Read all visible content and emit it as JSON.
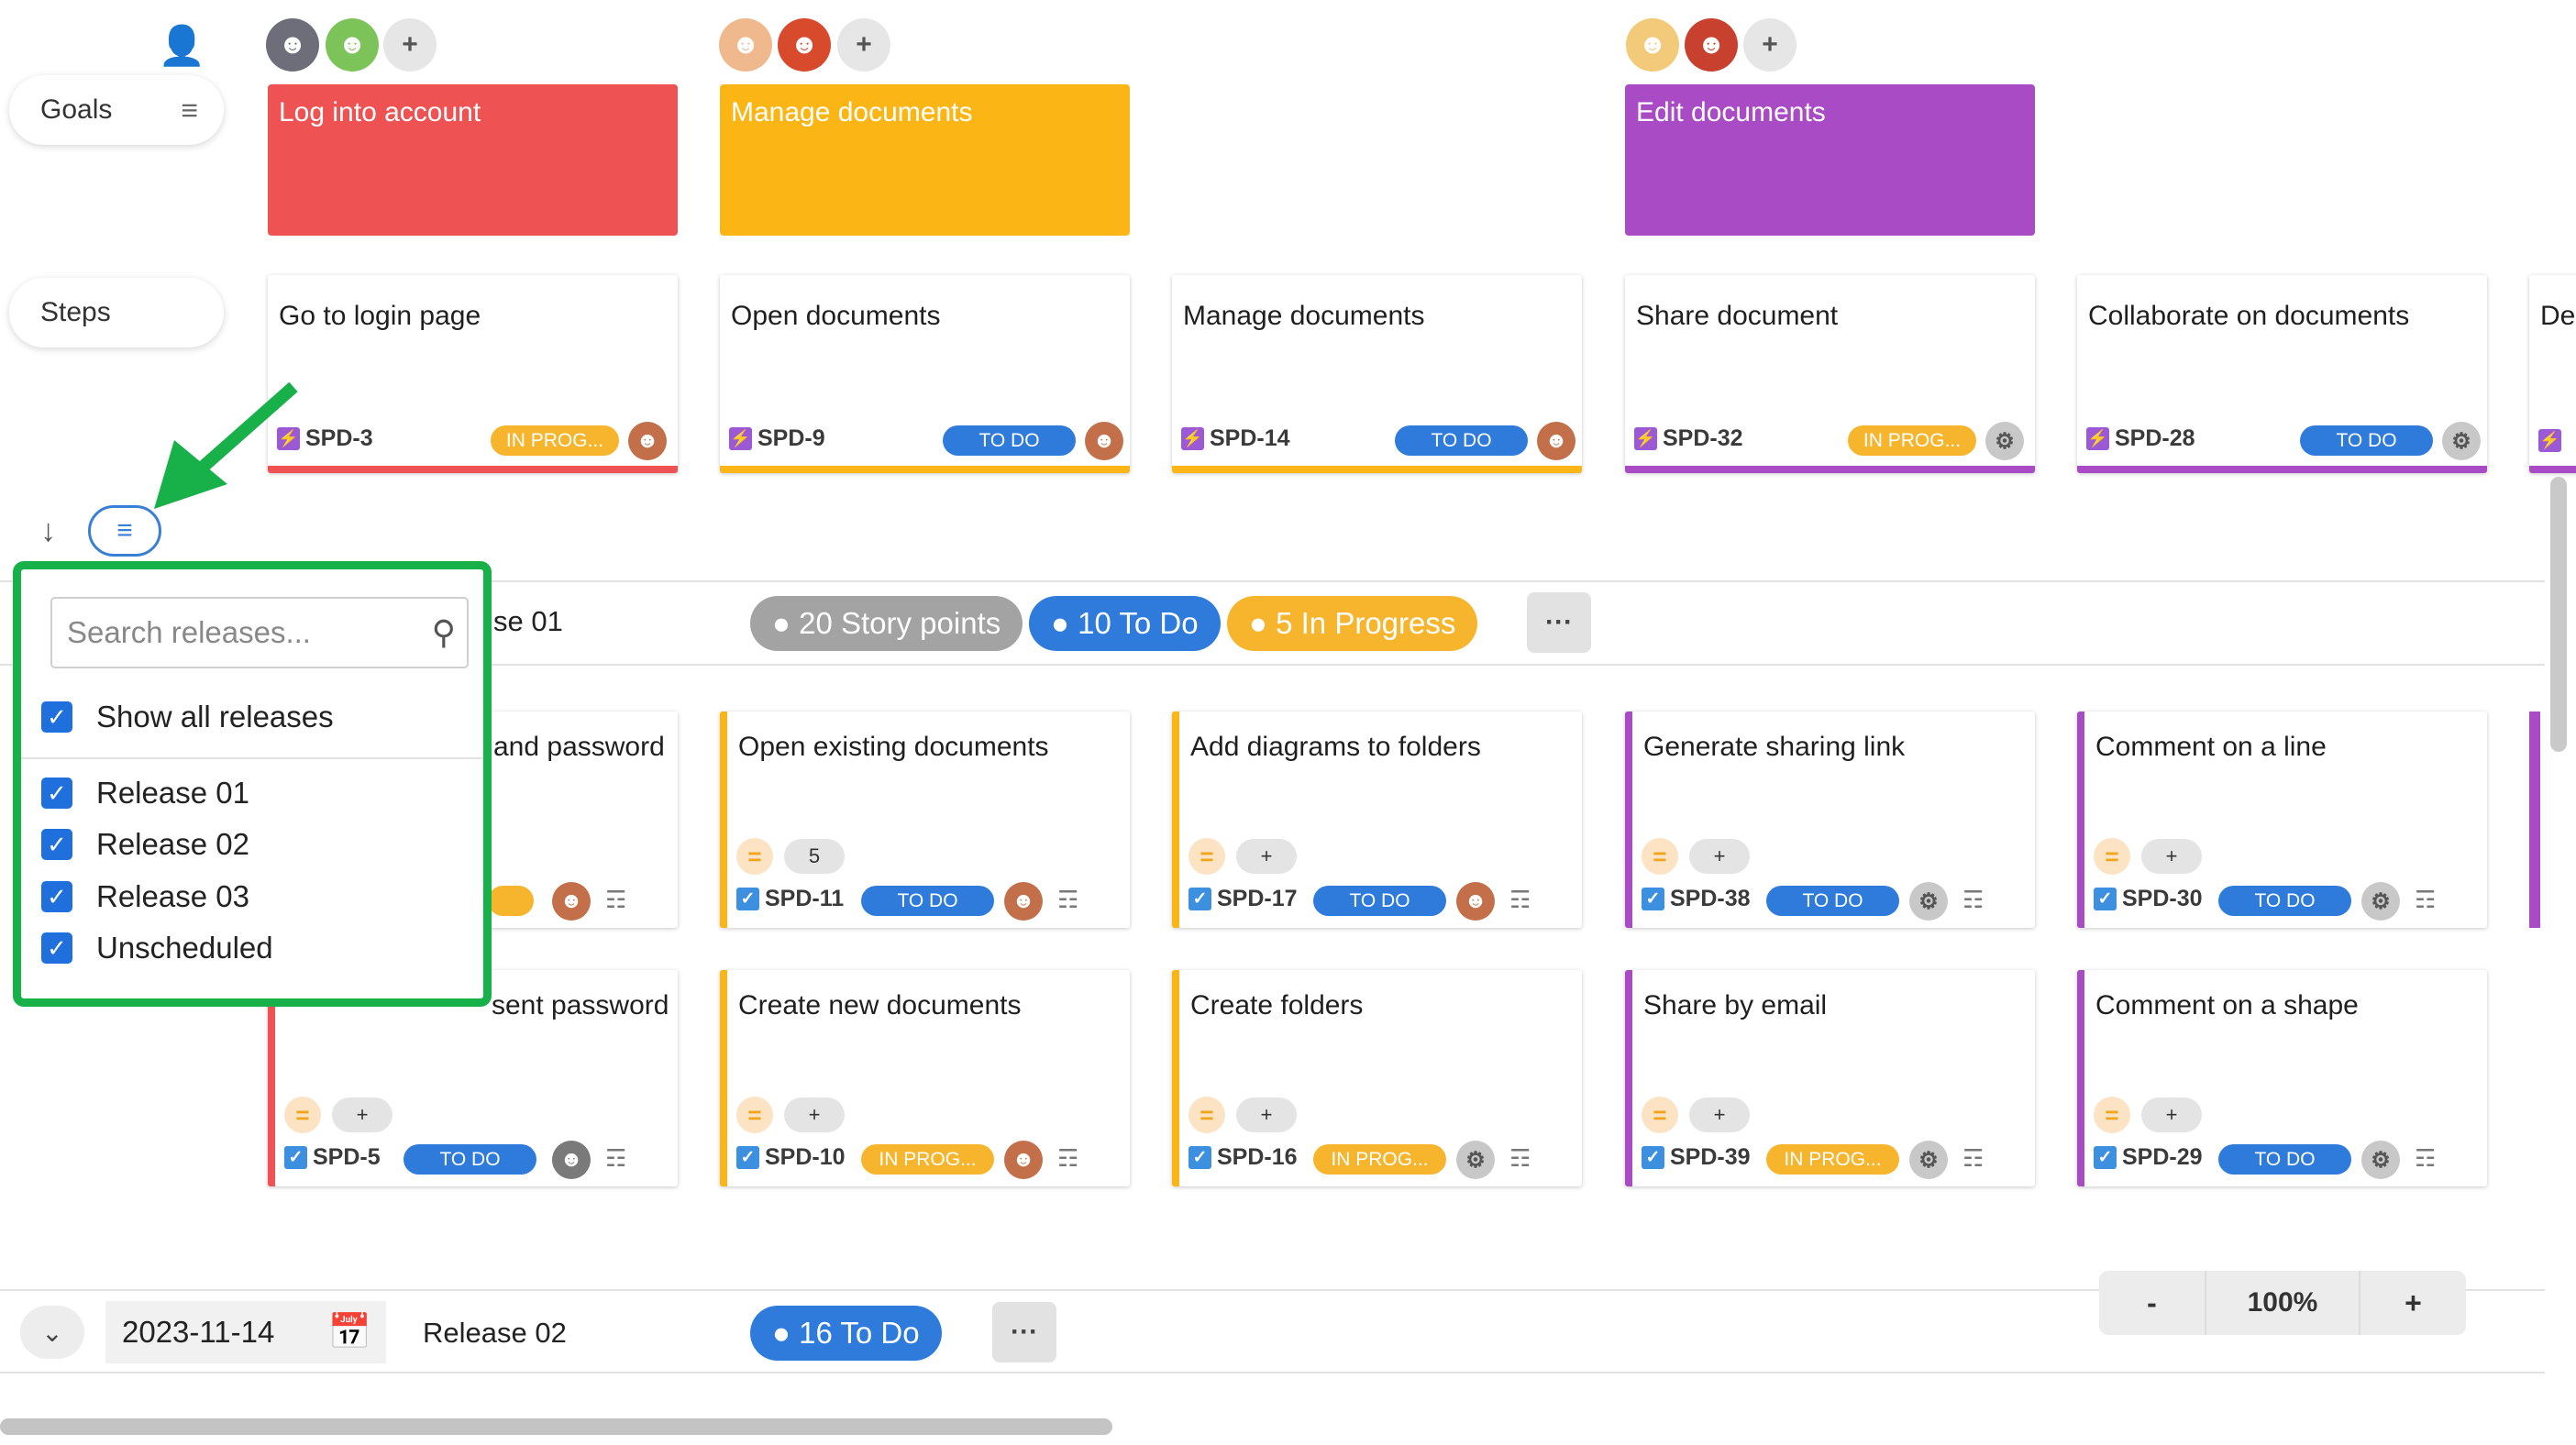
{
  "rows": {
    "goals_label": "Goals",
    "steps_label": "Steps"
  },
  "goals": [
    {
      "title": "Log into account",
      "color": "#ee5253"
    },
    {
      "title": "Manage documents",
      "color": "#fbb514"
    },
    {
      "title": "Edit documents",
      "color": "#a84bc4"
    }
  ],
  "steps": [
    {
      "title": "Go to login page",
      "key": "SPD-3",
      "status": "IN PROG..."
    },
    {
      "title": "Open documents",
      "key": "SPD-9",
      "status": "TO DO"
    },
    {
      "title": "Manage documents",
      "key": "SPD-14",
      "status": "TO DO"
    },
    {
      "title": "Share document",
      "key": "SPD-32",
      "status": "IN PROG..."
    },
    {
      "title": "Collaborate on documents",
      "key": "SPD-28",
      "status": "TO DO"
    },
    {
      "title": "De"
    }
  ],
  "release1": {
    "name_fragment": "se 01",
    "story_points": "20 Story points",
    "todo": "10 To Do",
    "inprogress": "5 In Progress",
    "more": "···"
  },
  "stories_row1": [
    {
      "title": "and password"
    },
    {
      "title": "Open existing documents",
      "estimate": "5",
      "key": "SPD-11",
      "status": "TO DO"
    },
    {
      "title": "Add diagrams to folders",
      "estimate": "+",
      "key": "SPD-17",
      "status": "TO DO"
    },
    {
      "title": "Generate sharing link",
      "estimate": "+",
      "key": "SPD-38",
      "status": "TO DO"
    },
    {
      "title": "Comment on a line",
      "estimate": "+",
      "key": "SPD-30",
      "status": "TO DO"
    }
  ],
  "stories_row2": [
    {
      "title": "sent password",
      "estimate": "+",
      "key": "SPD-5",
      "status": "TO DO"
    },
    {
      "title": "Create new documents",
      "estimate": "+",
      "key": "SPD-10",
      "status": "IN PROG..."
    },
    {
      "title": "Create folders",
      "estimate": "+",
      "key": "SPD-16",
      "status": "IN PROG..."
    },
    {
      "title": "Share by email",
      "estimate": "+",
      "key": "SPD-39",
      "status": "IN PROG..."
    },
    {
      "title": "Comment on a shape",
      "estimate": "+",
      "key": "SPD-29",
      "status": "TO DO"
    }
  ],
  "filter": {
    "search_placeholder": "Search releases...",
    "show_all": "Show all releases",
    "releases": [
      "Release 01",
      "Release 02",
      "Release 03",
      "Unscheduled"
    ]
  },
  "release2": {
    "date": "2023-11-14",
    "name": "Release 02",
    "todo": "16 To Do",
    "more": "···"
  },
  "zoom": {
    "minus": "-",
    "level": "100%",
    "plus": "+"
  },
  "colors": {
    "todo": "#2e7bdc",
    "inprogress": "#f6b52d",
    "highlight": "#17b049",
    "red": "#ee5253",
    "yellow": "#fbb514",
    "purple": "#a84bc4"
  }
}
